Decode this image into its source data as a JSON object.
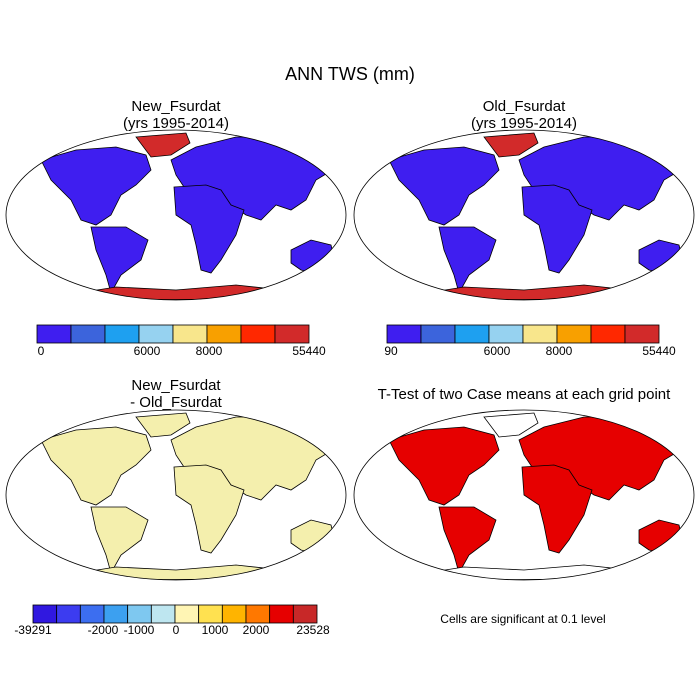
{
  "title": "ANN TWS (mm)",
  "panels": [
    {
      "title": [
        "New_Fsurdat",
        "(yrs 1995-2014)"
      ],
      "land_color": "#3f1ef0",
      "ice_color": "#d22a2a"
    },
    {
      "title": [
        "Old_Fsurdat",
        "(yrs 1995-2014)"
      ],
      "land_color": "#3f1ef0",
      "ice_color": "#d22a2a"
    },
    {
      "title": [
        "New_Fsurdat",
        "- Old_Fsurdat"
      ],
      "land_color": "#f4efad",
      "ice_color": "#f4efad"
    },
    {
      "title": [
        "T-Test of two Case means at each grid point"
      ],
      "land_color": "#e60000",
      "ice_color": "#ffffff"
    }
  ],
  "colorbars": [
    {
      "colors": [
        "#3f1ef0",
        "#3c64dc",
        "#1ea0f0",
        "#96d2f0",
        "#f8e68c",
        "#f8a000",
        "#ff2800",
        "#d22a2a"
      ],
      "labels": [
        "0",
        "6000",
        "8000",
        "55440"
      ]
    },
    {
      "colors": [
        "#3f1ef0",
        "#3c64dc",
        "#1ea0f0",
        "#96d2f0",
        "#f8e68c",
        "#f8a000",
        "#ff2800",
        "#d22a2a"
      ],
      "labels": [
        "90",
        "6000",
        "8000",
        "55440"
      ]
    },
    {
      "colors": [
        "#3018e0",
        "#3c3cf0",
        "#3c6ef0",
        "#3ca0f0",
        "#7ec8f0",
        "#bee6f0",
        "#fff5b4",
        "#ffe150",
        "#ffb400",
        "#ff7800",
        "#e60000",
        "#c82828"
      ],
      "labels": [
        "-39291",
        "-2000",
        "-1000",
        "0",
        "1000",
        "2000",
        "23528"
      ]
    }
  ],
  "note": "Cells are significant at 0.1 level"
}
